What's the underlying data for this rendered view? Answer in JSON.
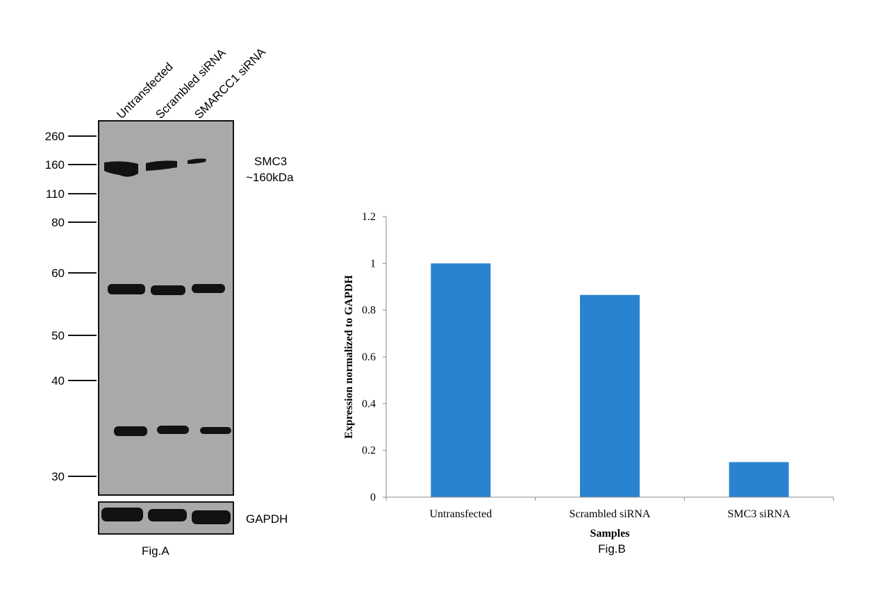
{
  "figA": {
    "lanes": [
      "Untransfected",
      "Scrambled siRNA",
      "SMARCC1 siRNA"
    ],
    "markers": [
      "260",
      "160",
      "110",
      "80",
      "60",
      "50",
      "40",
      "30"
    ],
    "target_label": "SMC3",
    "target_size": "~160kDa",
    "loading_label": "GAPDH",
    "caption": "Fig.A"
  },
  "chart_data": {
    "type": "bar",
    "categories": [
      "Untransfected",
      "Scrambled siRNA",
      "SMC3 siRNA"
    ],
    "values": [
      1.0,
      0.865,
      0.15
    ],
    "xlabel": "Samples",
    "ylabel": "Expression normalized to GAPDH",
    "ylim": [
      0,
      1.2
    ],
    "yticks": [
      "0",
      "0.2",
      "0.4",
      "0.6",
      "0.8",
      "1",
      "1.2"
    ],
    "grid": false,
    "bar_color": "#2a83d0",
    "caption": "Fig.B"
  }
}
